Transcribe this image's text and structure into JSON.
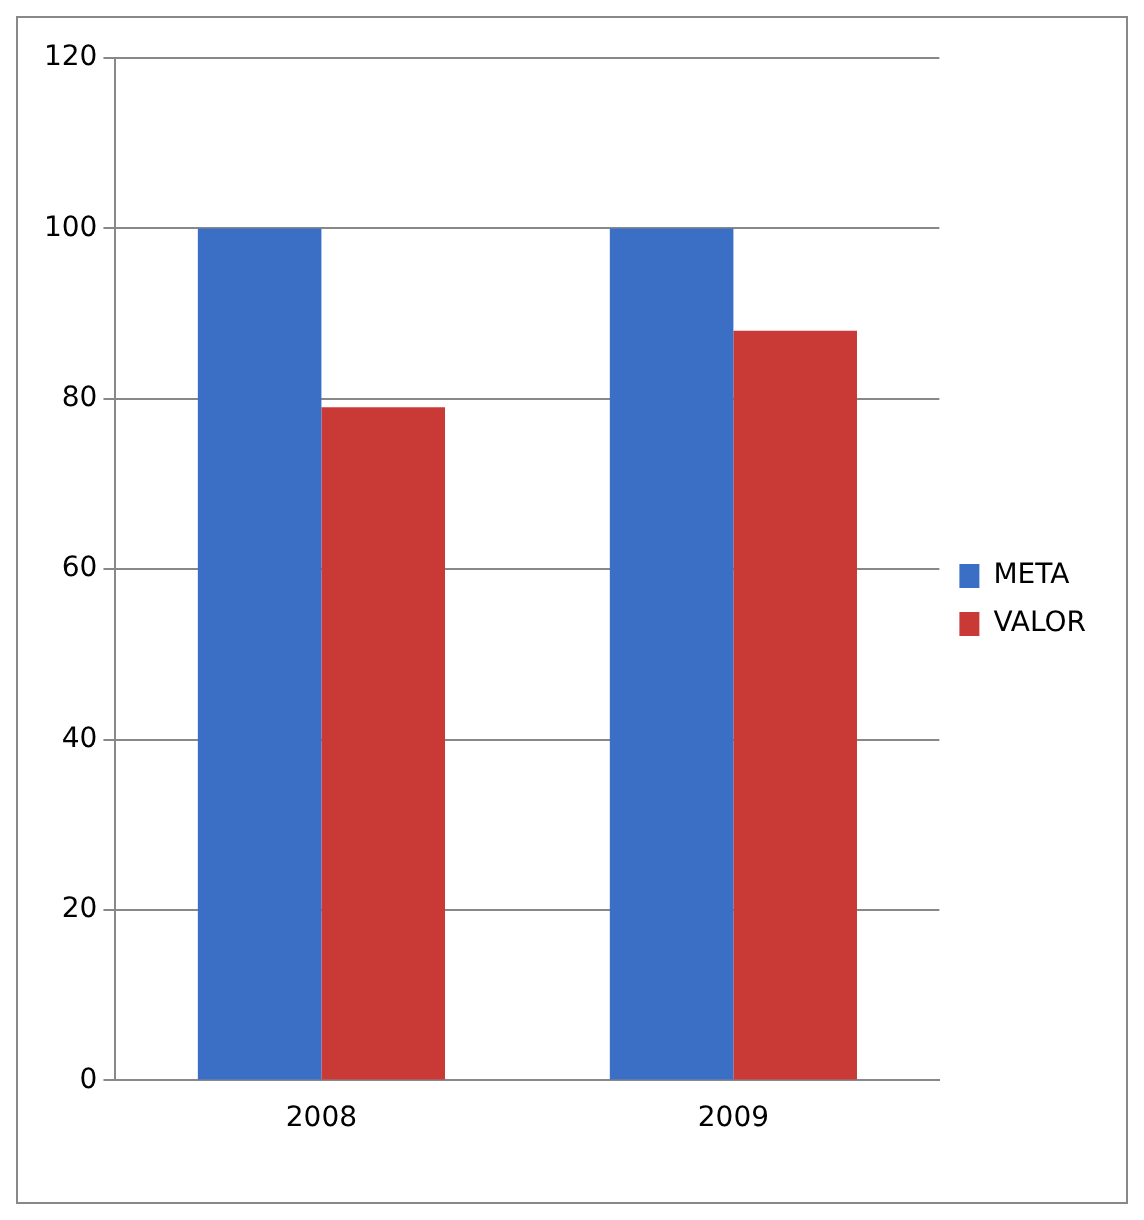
{
  "chart_data": {
    "type": "bar",
    "categories": [
      "2008",
      "2009"
    ],
    "series": [
      {
        "name": "META",
        "color": "#3b6fc6",
        "values": [
          100,
          100
        ]
      },
      {
        "name": "VALOR",
        "color": "#c93a36",
        "values": [
          79,
          88
        ]
      }
    ],
    "ylim": [
      0,
      120
    ],
    "yticks": [
      0,
      20,
      40,
      60,
      80,
      100,
      120
    ],
    "grid": "y",
    "legend": "right"
  }
}
